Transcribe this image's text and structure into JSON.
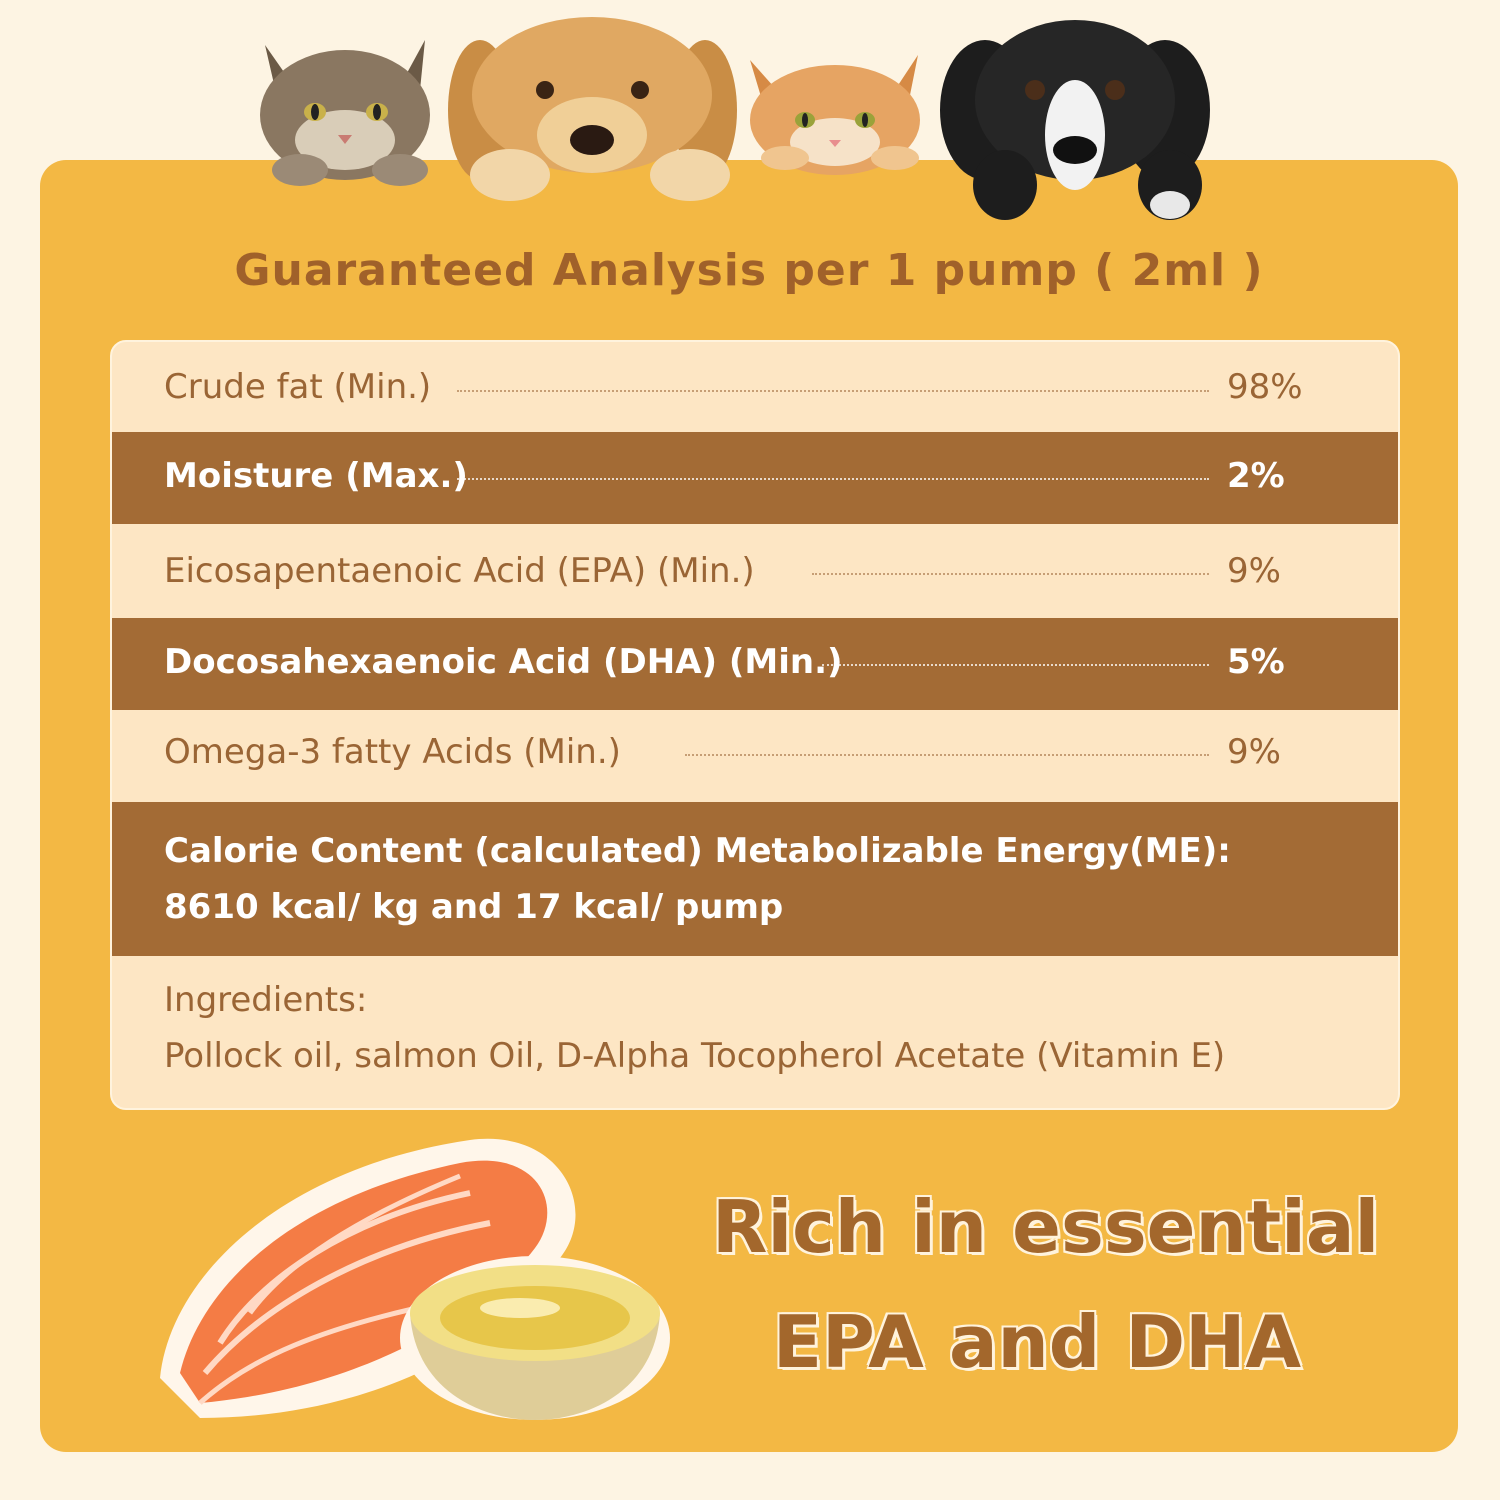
{
  "title": "Guaranteed Analysis per 1 pump (  2ml )",
  "analysis_rows": [
    {
      "label": "Crude fat (Min.)",
      "value": "98%"
    },
    {
      "label": "Moisture (Max.)",
      "value": "2%"
    },
    {
      "label": "Eicosapentaenoic Acid (EPA) (Min.)",
      "value": "9%"
    },
    {
      "label": "Docosahexaenoic Acid (DHA) (Min.)",
      "value": "5%"
    },
    {
      "label": "Omega-3 fatty Acids (Min.)",
      "value": "9%"
    }
  ],
  "calorie": {
    "line1": "Calorie Content (calculated) Metabolizable Energy(ME):",
    "line2": "8610 kcal/ kg and 17 kcal/ pump"
  },
  "ingredients": {
    "heading": "Ingredients:",
    "text": "Pollock oil, salmon Oil, D-Alpha Tocopherol Acetate (Vitamin E)"
  },
  "slogan": {
    "line1": "Rich in essential",
    "line2": "EPA and DHA"
  },
  "colors": {
    "background": "#fdf4e3",
    "panel": "#f3b844",
    "table_light": "#fde6c4",
    "table_dark": "#a36b35",
    "title": "#a0612a"
  },
  "images": [
    "tabby-cat-icon",
    "golden-retriever-icon",
    "orange-cat-icon",
    "black-white-dog-icon",
    "salmon-slices-icon",
    "oil-bowl-icon"
  ]
}
